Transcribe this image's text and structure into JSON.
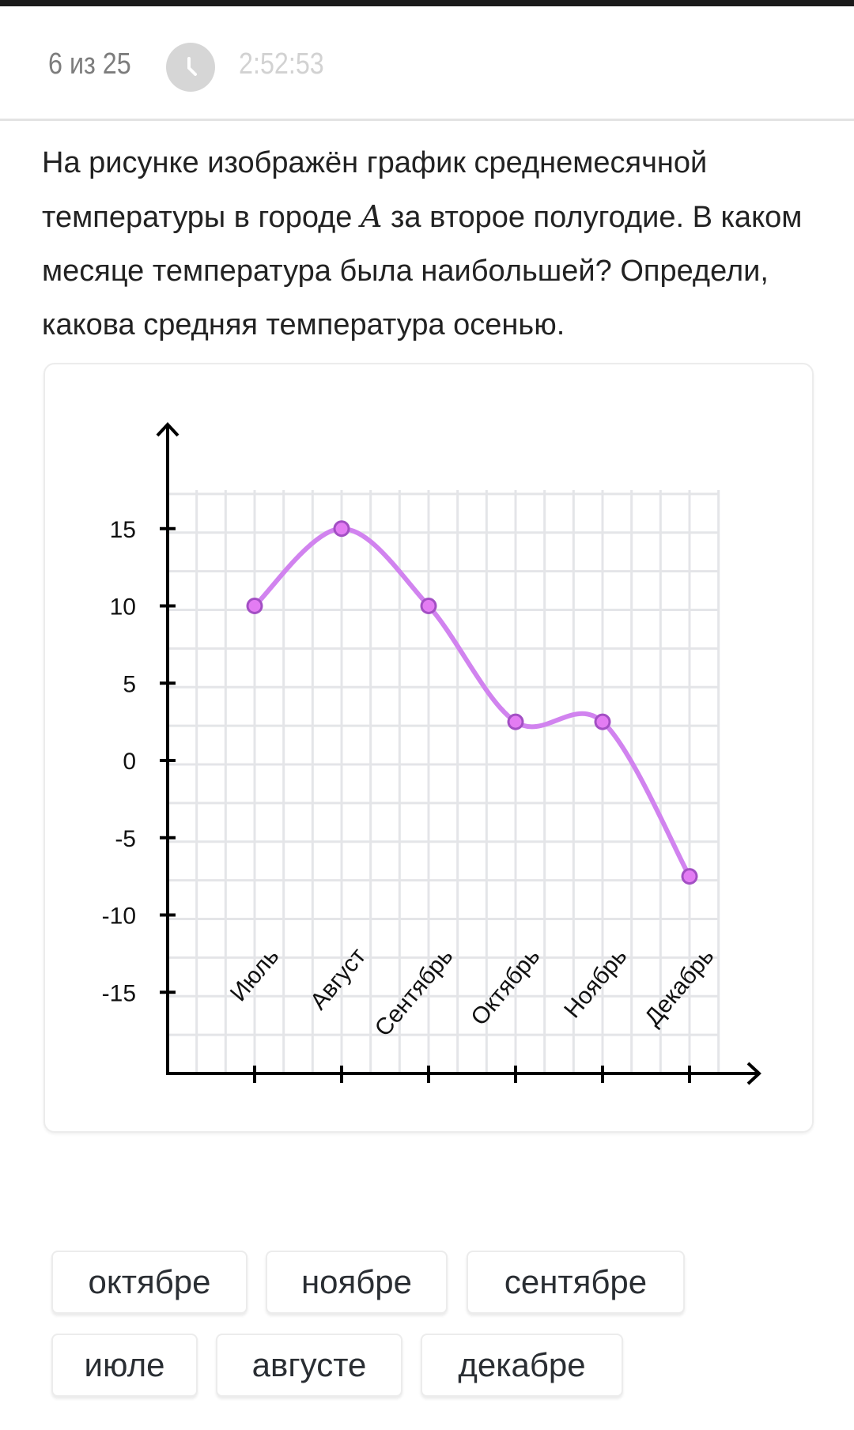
{
  "header": {
    "counter": "6 из 25",
    "timer": "2:52:53",
    "icon": "clock-icon"
  },
  "question": {
    "part1": "На рисунке изображён график среднемесячной температуры в городе ",
    "var": "A",
    "part2": " за второе полугодие. В каком месяце температура была наибольшей? Определи, какова средняя температура осенью."
  },
  "chart_data": {
    "type": "line",
    "categories": [
      "Июль",
      "Август",
      "Сентябрь",
      "Октябрь",
      "Ноябрь",
      "Декабрь"
    ],
    "values": [
      10,
      15,
      10,
      2.5,
      2.5,
      -7.5
    ],
    "yticks": [
      "15",
      "10",
      "5",
      "0",
      "-5",
      "-10",
      "-15"
    ],
    "ytick_values": [
      15,
      10,
      5,
      0,
      -5,
      -10,
      -15
    ],
    "ylim": [
      -20,
      17.5
    ],
    "grid": true,
    "smooth": true,
    "line_color": "#d183ef",
    "marker_color": "#e37cf3",
    "marker_edge": "#a34fc4"
  },
  "options": [
    {
      "label": "октябре"
    },
    {
      "label": "ноябре"
    },
    {
      "label": "сентябре"
    },
    {
      "label": "июле"
    },
    {
      "label": "августе"
    },
    {
      "label": "декабре"
    }
  ]
}
